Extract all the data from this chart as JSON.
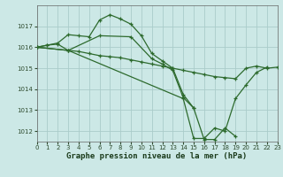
{
  "title": "Graphe pression niveau de la mer (hPa)",
  "bg_color": "#cce8e6",
  "grid_color": "#aaccca",
  "line_color": "#2d6a2d",
  "series": [
    [
      0,
      1016.0,
      1,
      1016.1,
      2,
      1016.2,
      3,
      1016.6,
      4,
      1016.55,
      5,
      1016.5,
      6,
      1017.3,
      7,
      1017.55,
      8,
      1017.35,
      9,
      1017.1,
      10,
      1016.55,
      11,
      1015.7,
      12,
      1015.35,
      13,
      1015.0,
      14,
      1013.75,
      15,
      1013.1
    ],
    [
      0,
      1016.0,
      1,
      1016.1,
      2,
      1016.15,
      3,
      1015.85,
      4,
      1015.8,
      5,
      1015.7,
      6,
      1015.6,
      7,
      1015.55,
      8,
      1015.5,
      9,
      1015.4,
      10,
      1015.3,
      11,
      1015.2,
      12,
      1015.1,
      13,
      1015.0,
      14,
      1014.9,
      15,
      1014.8,
      16,
      1014.7,
      17,
      1014.6,
      18,
      1014.55,
      19,
      1014.5,
      20,
      1015.0,
      21,
      1015.1,
      22,
      1015.0,
      23,
      1015.05
    ],
    [
      0,
      1016.0,
      3,
      1015.85,
      6,
      1016.55,
      9,
      1016.5,
      11,
      1015.45,
      12,
      1015.2,
      13,
      1014.9,
      14,
      1013.6,
      15,
      1013.1,
      16,
      1011.6,
      17,
      1011.6,
      18,
      1012.15,
      19,
      1011.75
    ],
    [
      0,
      1016.0,
      3,
      1015.85,
      14,
      1013.55,
      15,
      1011.65,
      16,
      1011.65,
      17,
      1012.15,
      18,
      1012.0,
      19,
      1013.55,
      20,
      1014.2,
      21,
      1014.8,
      22,
      1015.05
    ]
  ],
  "xlim": [
    0,
    23
  ],
  "ylim": [
    1011.5,
    1018.0
  ],
  "yticks": [
    1012,
    1013,
    1014,
    1015,
    1016,
    1017
  ],
  "xticks": [
    0,
    1,
    2,
    3,
    4,
    5,
    6,
    7,
    8,
    9,
    10,
    11,
    12,
    13,
    14,
    15,
    16,
    17,
    18,
    19,
    20,
    21,
    22,
    23
  ],
  "tick_fontsize": 5,
  "label_fontsize": 6.5
}
